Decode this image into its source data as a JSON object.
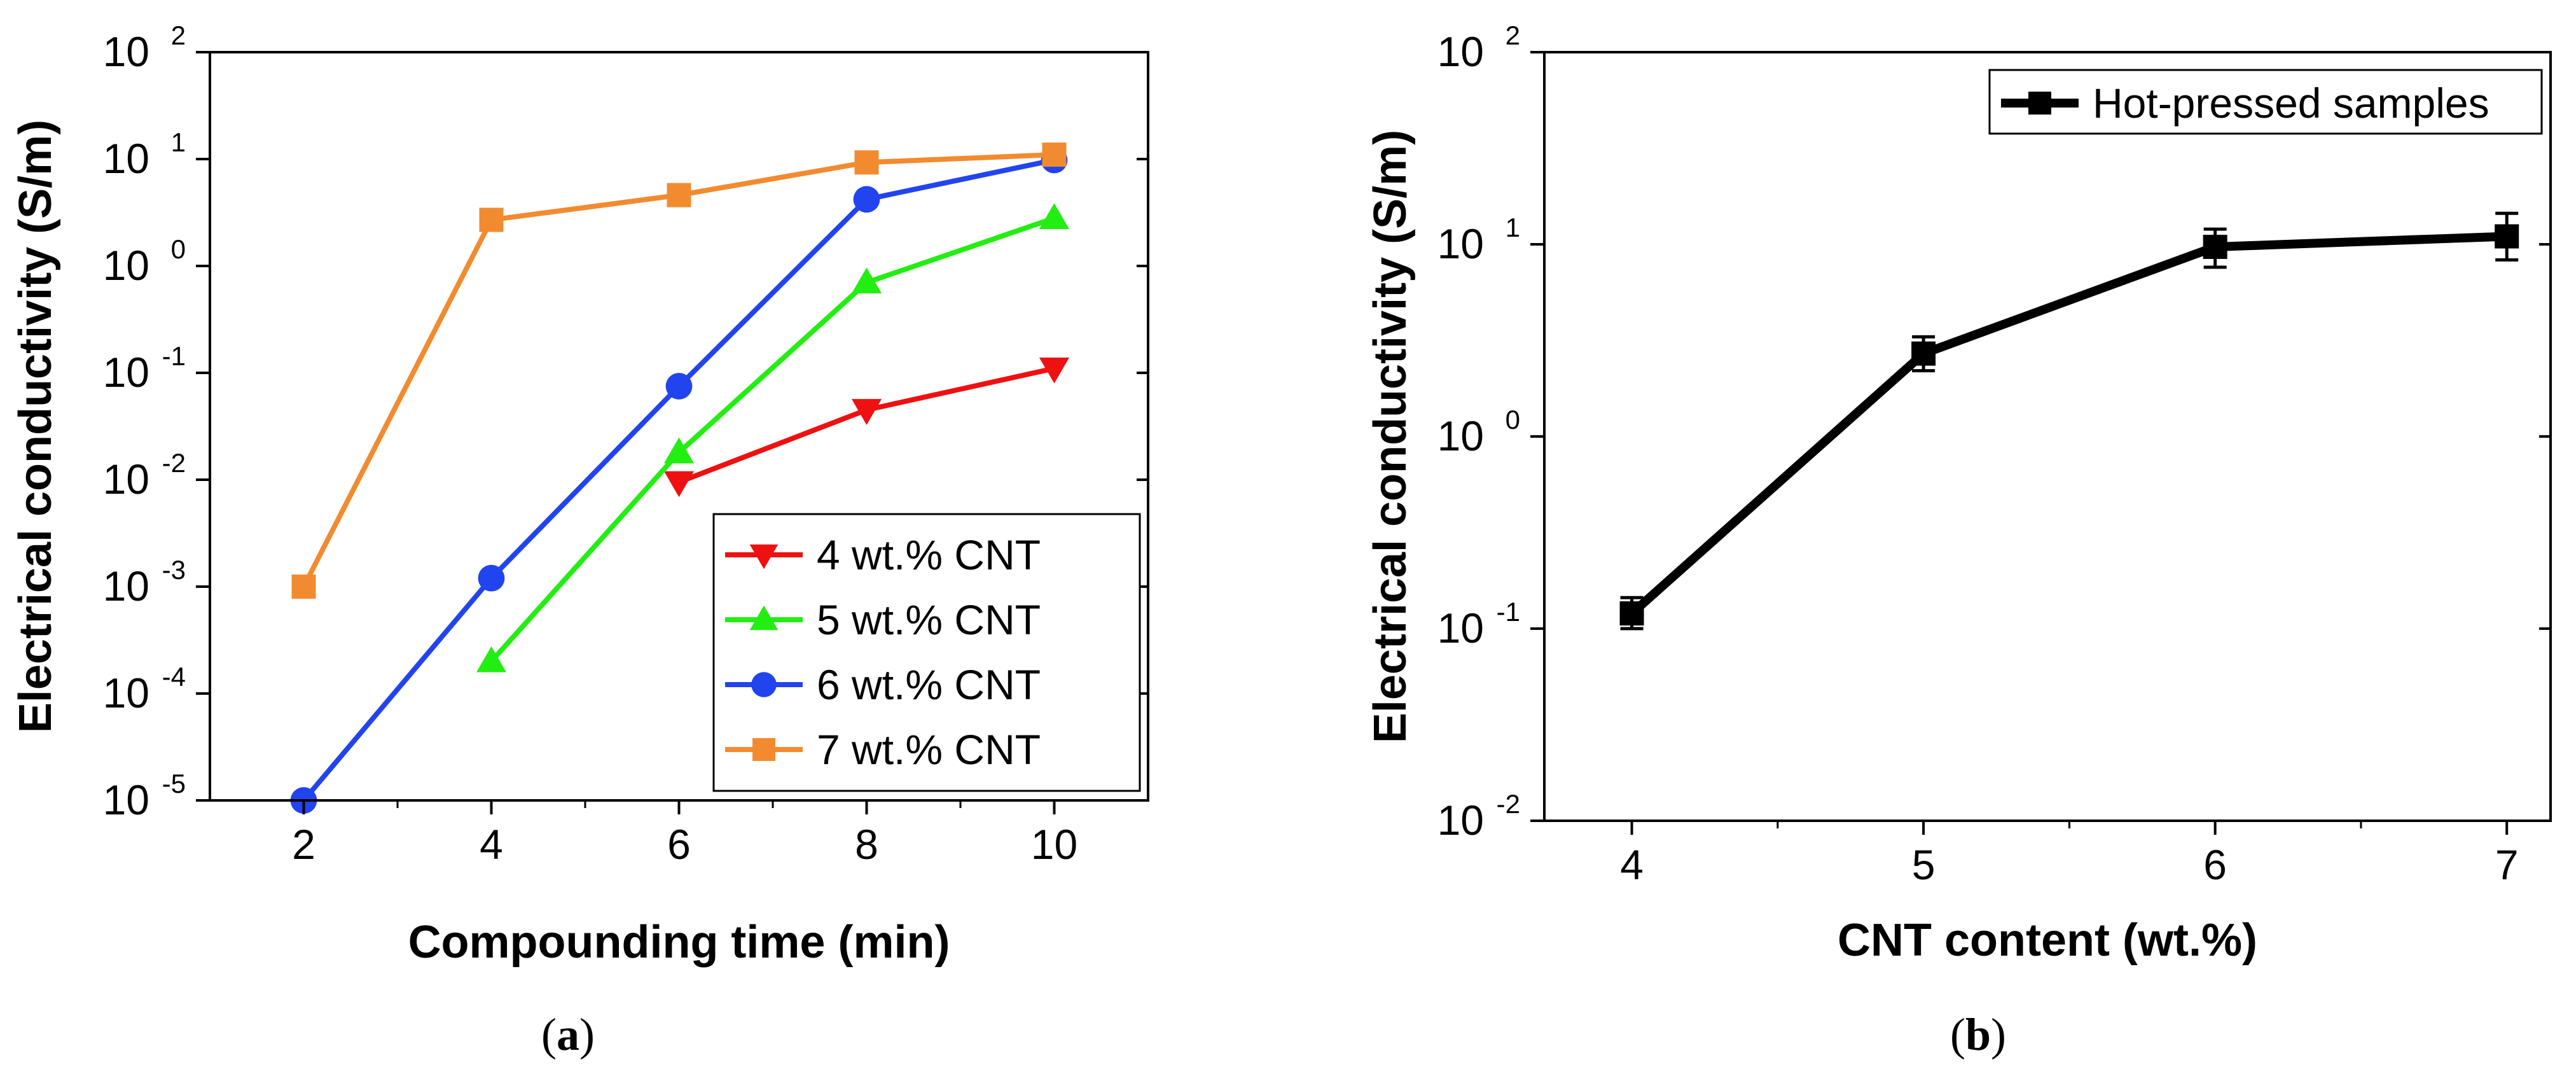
{
  "chart_data": [
    {
      "type": "line",
      "panel": "a",
      "caption_open": "(",
      "caption_letter": "a",
      "caption_close": ")",
      "xlabel": "Compounding time (min)",
      "ylabel": "Electrical conductivity (S/m)",
      "yscale": "log",
      "xlim": [
        1,
        11
      ],
      "ylim": [
        1e-05,
        100
      ],
      "xticks": [
        2,
        4,
        6,
        8,
        10
      ],
      "yticks": [
        {
          "base": "10",
          "exp": "-5"
        },
        {
          "base": "10",
          "exp": "-4"
        },
        {
          "base": "10",
          "exp": "-3"
        },
        {
          "base": "10",
          "exp": "-2"
        },
        {
          "base": "10",
          "exp": "-1"
        },
        {
          "base": "10",
          "exp": "0"
        },
        {
          "base": "10",
          "exp": "1"
        },
        {
          "base": "10",
          "exp": "2"
        }
      ],
      "legend_position": "bottom-right",
      "series": [
        {
          "name": "4 wt.% CNT",
          "color": "#ee1111",
          "marker": "triangle-down",
          "x": [
            6,
            8,
            10
          ],
          "values": [
            0.0095,
            0.045,
            0.11
          ]
        },
        {
          "name": "5 wt.% CNT",
          "color": "#22ee11",
          "marker": "triangle-up",
          "x": [
            4,
            6,
            8,
            10
          ],
          "values": [
            0.0002,
            0.018,
            0.7,
            2.8
          ]
        },
        {
          "name": "6 wt.% CNT",
          "color": "#2244ee",
          "marker": "circle",
          "x": [
            2,
            4,
            6,
            8,
            10
          ],
          "values": [
            1e-05,
            0.0012,
            0.075,
            4.2,
            9.8
          ]
        },
        {
          "name": "7 wt.% CNT",
          "color": "#f28b30",
          "marker": "square",
          "x": [
            2,
            4,
            6,
            8,
            10
          ],
          "values": [
            0.001,
            2.7,
            4.6,
            9.3,
            11.0
          ]
        }
      ]
    },
    {
      "type": "line",
      "panel": "b",
      "caption_open": "(",
      "caption_letter": "b",
      "caption_close": ")",
      "xlabel": "CNT content (wt.%)",
      "ylabel": "Electrical conductivity (S/m)",
      "yscale": "log",
      "xlim": [
        3.7,
        7.15
      ],
      "ylim": [
        0.01,
        100
      ],
      "xticks": [
        4,
        5,
        6,
        7
      ],
      "yticks": [
        {
          "base": "10",
          "exp": "-2"
        },
        {
          "base": "10",
          "exp": "-1"
        },
        {
          "base": "10",
          "exp": "0"
        },
        {
          "base": "10",
          "exp": "1"
        },
        {
          "base": "10",
          "exp": "2"
        }
      ],
      "legend_position": "top-right",
      "series": [
        {
          "name": "Hot-pressed samples",
          "color": "#000000",
          "marker": "square",
          "x": [
            4,
            5,
            6,
            7
          ],
          "values": [
            0.12,
            2.7,
            9.7,
            11.0
          ],
          "error_low": [
            0.1,
            2.2,
            7.6,
            8.3
          ],
          "error_high": [
            0.145,
            3.3,
            12.0,
            14.5
          ]
        }
      ]
    }
  ]
}
